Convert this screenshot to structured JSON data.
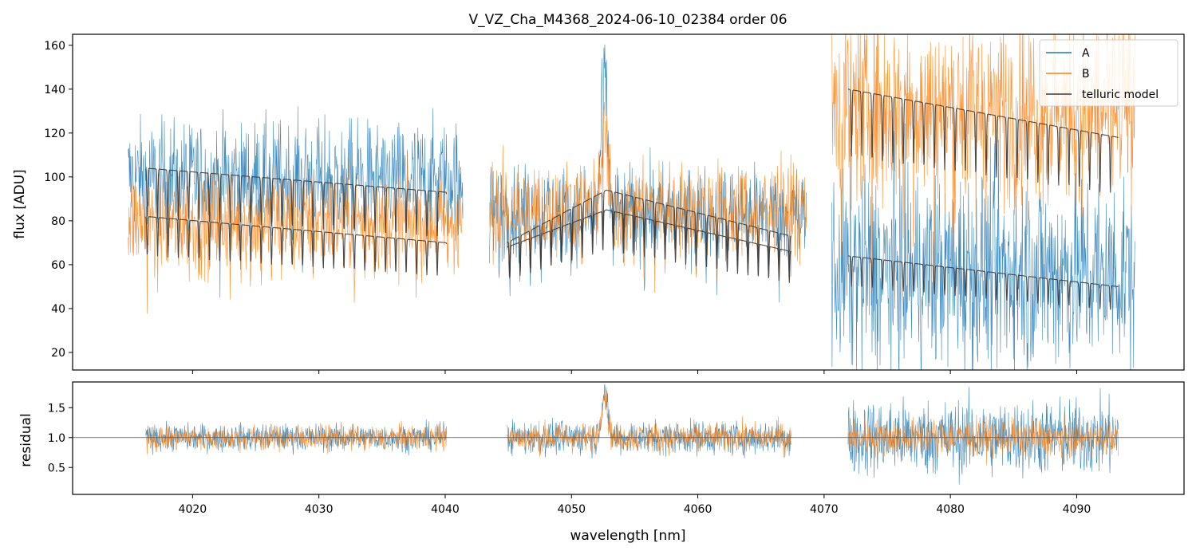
{
  "chart_data": [
    {
      "type": "line",
      "title": "V_VZ_Cha_M4368_2024-06-10_02384  order 06",
      "xlabel": "",
      "ylabel": "flux [ADU]",
      "xlim": [
        4010.5,
        4098.5
      ],
      "ylim": [
        12,
        165
      ],
      "yticks": [
        20,
        40,
        60,
        80,
        100,
        120,
        140,
        160
      ],
      "xticks": [
        4020,
        4030,
        4040,
        4050,
        4060,
        4070,
        4080,
        4090
      ],
      "legend": {
        "placement": "top-right",
        "entries": [
          "A",
          "B",
          "telluric model"
        ]
      },
      "segments": [
        {
          "x_start": 4014.9,
          "x_end": 4041.4,
          "A_level": 100,
          "B_level": 80,
          "A_noise": 18,
          "B_noise": 16
        },
        {
          "x_start": 4043.5,
          "x_end": 4068.6,
          "A_level": 84,
          "B_level": 86,
          "A_noise": 15,
          "B_noise": 15,
          "emission_center": 4052.6,
          "emission_peak": 70
        },
        {
          "x_start": 4070.6,
          "x_end": 4094.6,
          "A_level": 58,
          "B_level": 132,
          "A_noise": 32,
          "B_noise": 30
        }
      ],
      "telluric_models": [
        {
          "segment": 1,
          "x_start": 4016.3,
          "x_end": 4040.1,
          "upper_start": 104,
          "upper_end": 93,
          "lower_start": 82,
          "lower_end": 70
        },
        {
          "segment": 2,
          "x_start": 4044.9,
          "x_end": 4067.4,
          "upper_start": 70,
          "upper_mid": 94,
          "upper_end": 73,
          "lower_start": 68,
          "lower_mid": 85,
          "lower_end": 66
        },
        {
          "segment": 3,
          "x_start": 4071.9,
          "x_end": 4093.3,
          "upper_start": 140,
          "upper_end": 118,
          "lower_start": 64,
          "lower_end": 50
        }
      ],
      "series": [
        {
          "name": "A",
          "color": "#1f77b4"
        },
        {
          "name": "B",
          "color": "#ff7f0e"
        },
        {
          "name": "telluric model",
          "color": "#3b3b3b"
        }
      ]
    },
    {
      "type": "line",
      "title": "",
      "xlabel": "wavelength [nm]",
      "ylabel": "residual",
      "xlim": [
        4010.5,
        4098.5
      ],
      "ylim": [
        0.05,
        1.93
      ],
      "yticks": [
        0.5,
        1.0,
        1.5
      ],
      "xticks": [
        4020,
        4030,
        4040,
        4050,
        4060,
        4070,
        4080,
        4090
      ],
      "reference_line": 1.0,
      "segments": [
        {
          "x_start": 4016.3,
          "x_end": 4040.1,
          "A_noise": 0.16,
          "B_noise": 0.15
        },
        {
          "x_start": 4044.9,
          "x_end": 4067.4,
          "A_noise": 0.2,
          "B_noise": 0.18,
          "emission_center": 4052.6,
          "emission_peak": 0.75
        },
        {
          "x_start": 4071.9,
          "x_end": 4093.3,
          "A_noise": 0.45,
          "B_noise": 0.22
        }
      ],
      "series": [
        {
          "name": "A",
          "color": "#1f77b4"
        },
        {
          "name": "B",
          "color": "#ff7f0e"
        }
      ]
    }
  ]
}
